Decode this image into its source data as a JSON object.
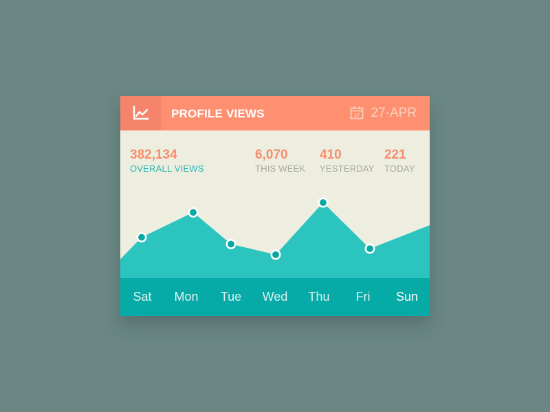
{
  "header": {
    "title": "PROFILE VIEWS",
    "date": "27-APR",
    "calendar_day": "17",
    "chart_icon": "line-chart-icon",
    "calendar_icon": "calendar-icon"
  },
  "stats": [
    {
      "value": "382,134",
      "label": "OVERALL VIEWS"
    },
    {
      "value": "6,070",
      "label": "THIS WEEK"
    },
    {
      "value": "410",
      "label": "YESTERDAY"
    },
    {
      "value": "221",
      "label": "TODAY"
    }
  ],
  "colors": {
    "header": "#fe9071",
    "header_icon_box": "#f5846a",
    "accent_text": "#f68d6e",
    "area_fill": "#2cc4be",
    "marker": "#07a7a2",
    "days_bar": "#06aaa6",
    "card_background": "#edeee0"
  },
  "chart_data": {
    "type": "area",
    "categories": [
      "Sat",
      "Mon",
      "Tue",
      "Wed",
      "Thu",
      "Fri",
      "Sun"
    ],
    "values": [
      54,
      87,
      45,
      31,
      100,
      39,
      70
    ],
    "ylim": [
      0,
      130
    ],
    "highlighted": "Sun",
    "markers_on": [
      "Sat",
      "Mon",
      "Tue",
      "Wed",
      "Thu",
      "Fri"
    ],
    "grid": false,
    "legend": "none"
  }
}
